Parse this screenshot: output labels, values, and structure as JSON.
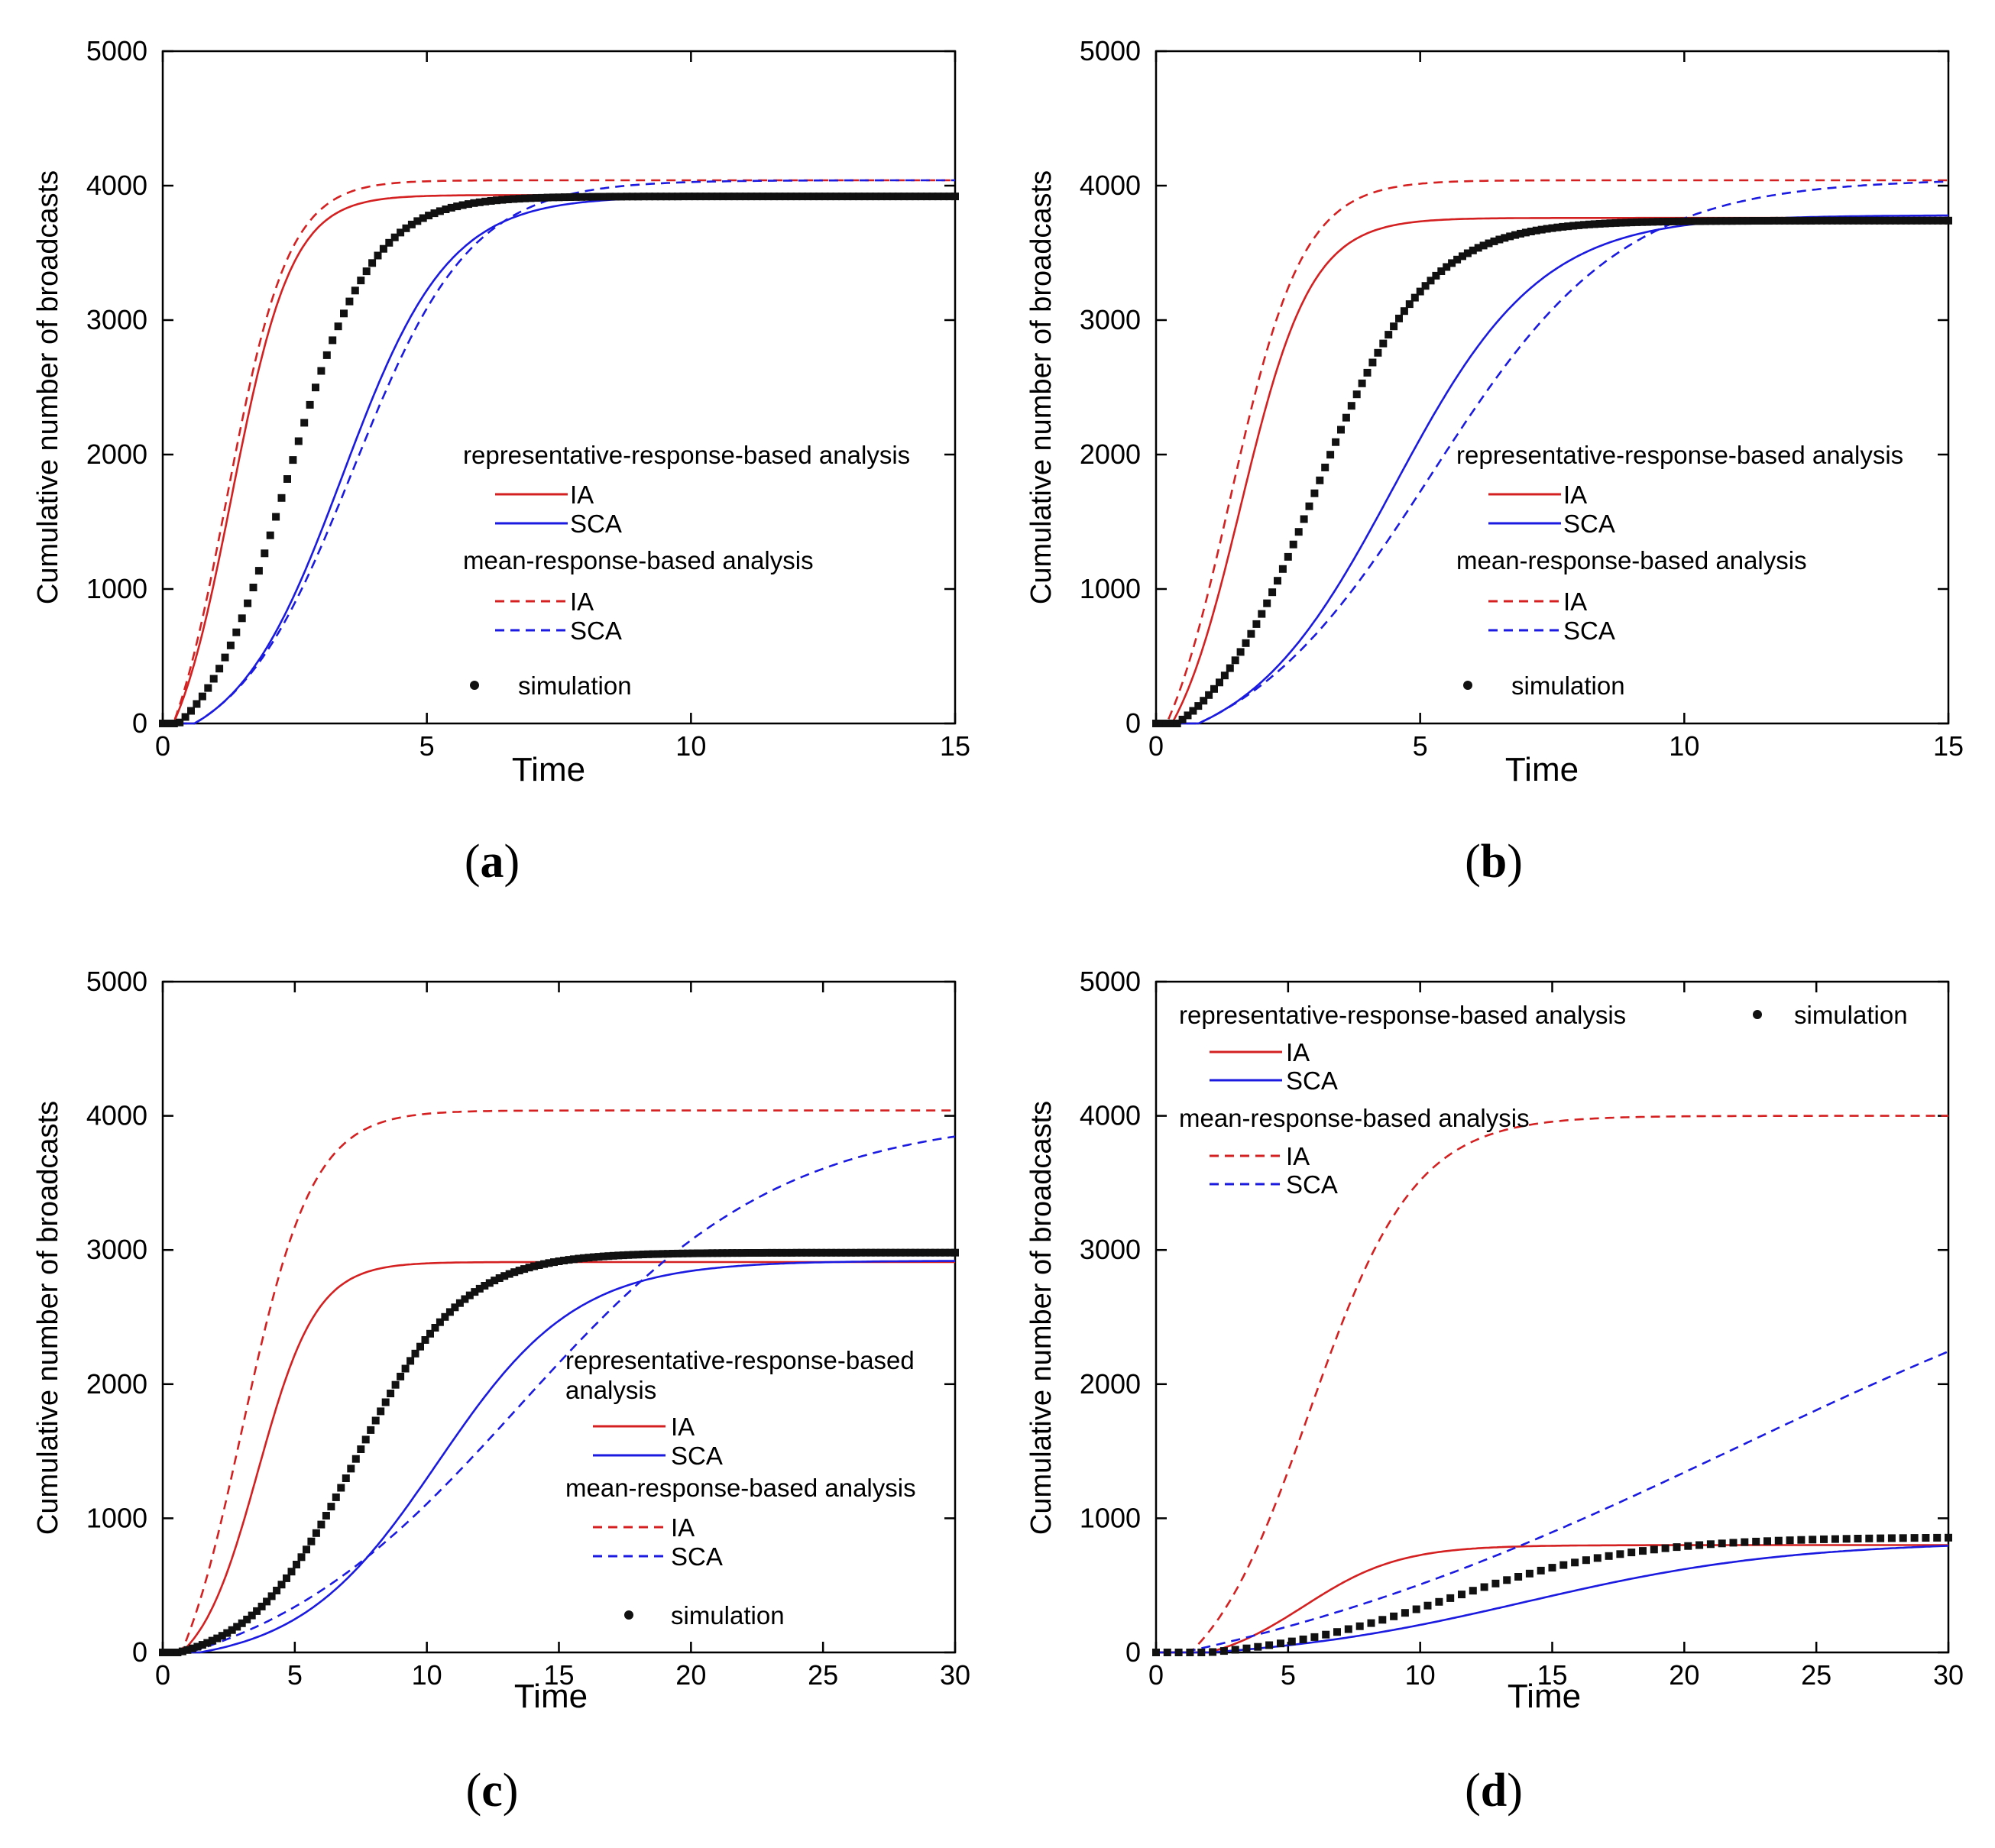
{
  "figure": {
    "panels": [
      "(a)",
      "(b)",
      "(c)",
      "(d)"
    ]
  },
  "chart_data": [
    {
      "id": "a",
      "type": "line",
      "panel_label": "a",
      "xlabel": "Time",
      "ylabel": "Cumulative number of broadcasts",
      "xlim": [
        0,
        15
      ],
      "ylim": [
        0,
        5000
      ],
      "xticks": [
        0,
        5,
        10,
        15
      ],
      "yticks": [
        0,
        1000,
        2000,
        3000,
        4000,
        5000
      ],
      "legend_position": "center-right",
      "legend": {
        "group1": "representative-response-based analysis",
        "group2": "mean-response-based analysis",
        "ia": "IA",
        "sca": "SCA",
        "simulation": "simulation"
      },
      "colors": {
        "ia": "#d42020",
        "sca": "#1a1ae0",
        "sim": "#111111"
      },
      "model": {
        "rep_ia": {
          "final": 3930,
          "t50": 1.3,
          "k": 1.75,
          "t0": 0.2
        },
        "rep_sca": {
          "final": 3920,
          "t50": 3.4,
          "k": 1.0,
          "t0": 0.6
        },
        "mean_ia": {
          "final": 4040,
          "t50": 1.2,
          "k": 1.7,
          "t0": 0.2
        },
        "mean_sca": {
          "final": 4040,
          "t50": 3.6,
          "k": 0.9,
          "t0": 0.6
        },
        "sim": {
          "final": 3920,
          "t50": 2.35,
          "k": 1.25,
          "t0": 0.3,
          "n": 140
        }
      }
    },
    {
      "id": "b",
      "type": "line",
      "panel_label": "b",
      "xlabel": "Time",
      "ylabel": "Cumulative number of broadcasts",
      "xlim": [
        0,
        15
      ],
      "ylim": [
        0,
        5000
      ],
      "xticks": [
        0,
        5,
        10,
        15
      ],
      "yticks": [
        0,
        1000,
        2000,
        3000,
        4000,
        5000
      ],
      "legend_position": "center-right",
      "legend": {
        "group1": "representative-response-based analysis",
        "group2": "mean-response-based analysis",
        "ia": "IA",
        "sca": "SCA",
        "simulation": "simulation"
      },
      "colors": {
        "ia": "#d42020",
        "sca": "#1a1ae0",
        "sim": "#111111"
      },
      "model": {
        "rep_ia": {
          "final": 3760,
          "t50": 1.6,
          "k": 1.5,
          "t0": 0.3
        },
        "rep_sca": {
          "final": 3780,
          "t50": 4.5,
          "k": 0.72,
          "t0": 0.8
        },
        "mean_ia": {
          "final": 4040,
          "t50": 1.4,
          "k": 1.45,
          "t0": 0.2
        },
        "mean_sca": {
          "final": 4050,
          "t50": 5.2,
          "k": 0.55,
          "t0": 0.8
        },
        "sim": {
          "final": 3740,
          "t50": 3.0,
          "k": 0.95,
          "t0": 0.4,
          "n": 150
        }
      }
    },
    {
      "id": "c",
      "type": "line",
      "panel_label": "c",
      "xlabel": "Time",
      "ylabel": "Cumulative number of broadcasts",
      "xlim": [
        0,
        30
      ],
      "ylim": [
        0,
        5000
      ],
      "xticks": [
        0,
        5,
        10,
        15,
        20,
        25,
        30
      ],
      "yticks": [
        0,
        1000,
        2000,
        3000,
        4000,
        5000
      ],
      "legend_position": "lower-right",
      "legend": {
        "group1a": "representative-response-based",
        "group1b": "analysis",
        "group2": "mean-response-based analysis",
        "ia": "IA",
        "sca": "SCA",
        "simulation": "simulation"
      },
      "colors": {
        "ia": "#d42020",
        "sca": "#1a1ae0",
        "sim": "#111111"
      },
      "model": {
        "rep_ia": {
          "final": 2910,
          "t50": 3.6,
          "k": 0.9,
          "t0": 0.7
        },
        "rep_sca": {
          "final": 2920,
          "t50": 10.4,
          "k": 0.38,
          "t0": 1.4
        },
        "mean_ia": {
          "final": 4040,
          "t50": 3.0,
          "k": 0.75,
          "t0": 0.7
        },
        "mean_sca": {
          "final": 4000,
          "t50": 13.5,
          "k": 0.2,
          "t0": 1.0
        },
        "sim": {
          "final": 2980,
          "t50": 7.3,
          "k": 0.5,
          "t0": 0.6,
          "n": 160
        }
      }
    },
    {
      "id": "d",
      "type": "line",
      "panel_label": "d",
      "xlabel": "Time",
      "ylabel": "Cumulative number of broadcasts",
      "xlim": [
        0,
        30
      ],
      "ylim": [
        0,
        5000
      ],
      "xticks": [
        0,
        5,
        10,
        15,
        20,
        25,
        30
      ],
      "yticks": [
        0,
        1000,
        2000,
        3000,
        4000,
        5000
      ],
      "legend_position": "top",
      "legend": {
        "group1": "representative-response-based analysis",
        "group2": "mean-response-based analysis",
        "ia": "IA",
        "sca": "SCA",
        "simulation": "simulation"
      },
      "colors": {
        "ia": "#d42020",
        "sca": "#1a1ae0",
        "sim": "#111111"
      },
      "model": {
        "rep_ia": {
          "final": 800,
          "t50": 5.6,
          "k": 0.55,
          "t0": 2.0
        },
        "rep_sca": {
          "final": 830,
          "t50": 14.0,
          "k": 0.2,
          "t0": 2.0
        },
        "mean_ia": {
          "final": 4000,
          "t50": 5.8,
          "k": 0.5,
          "t0": 1.3
        },
        "mean_sca": {
          "final": 3600,
          "t50": 22.0,
          "k": 0.09,
          "t0": 1.0
        },
        "sim": {
          "final": 860,
          "t50": 11.0,
          "k": 0.28,
          "t0": 2.0,
          "n": 70
        }
      }
    }
  ]
}
